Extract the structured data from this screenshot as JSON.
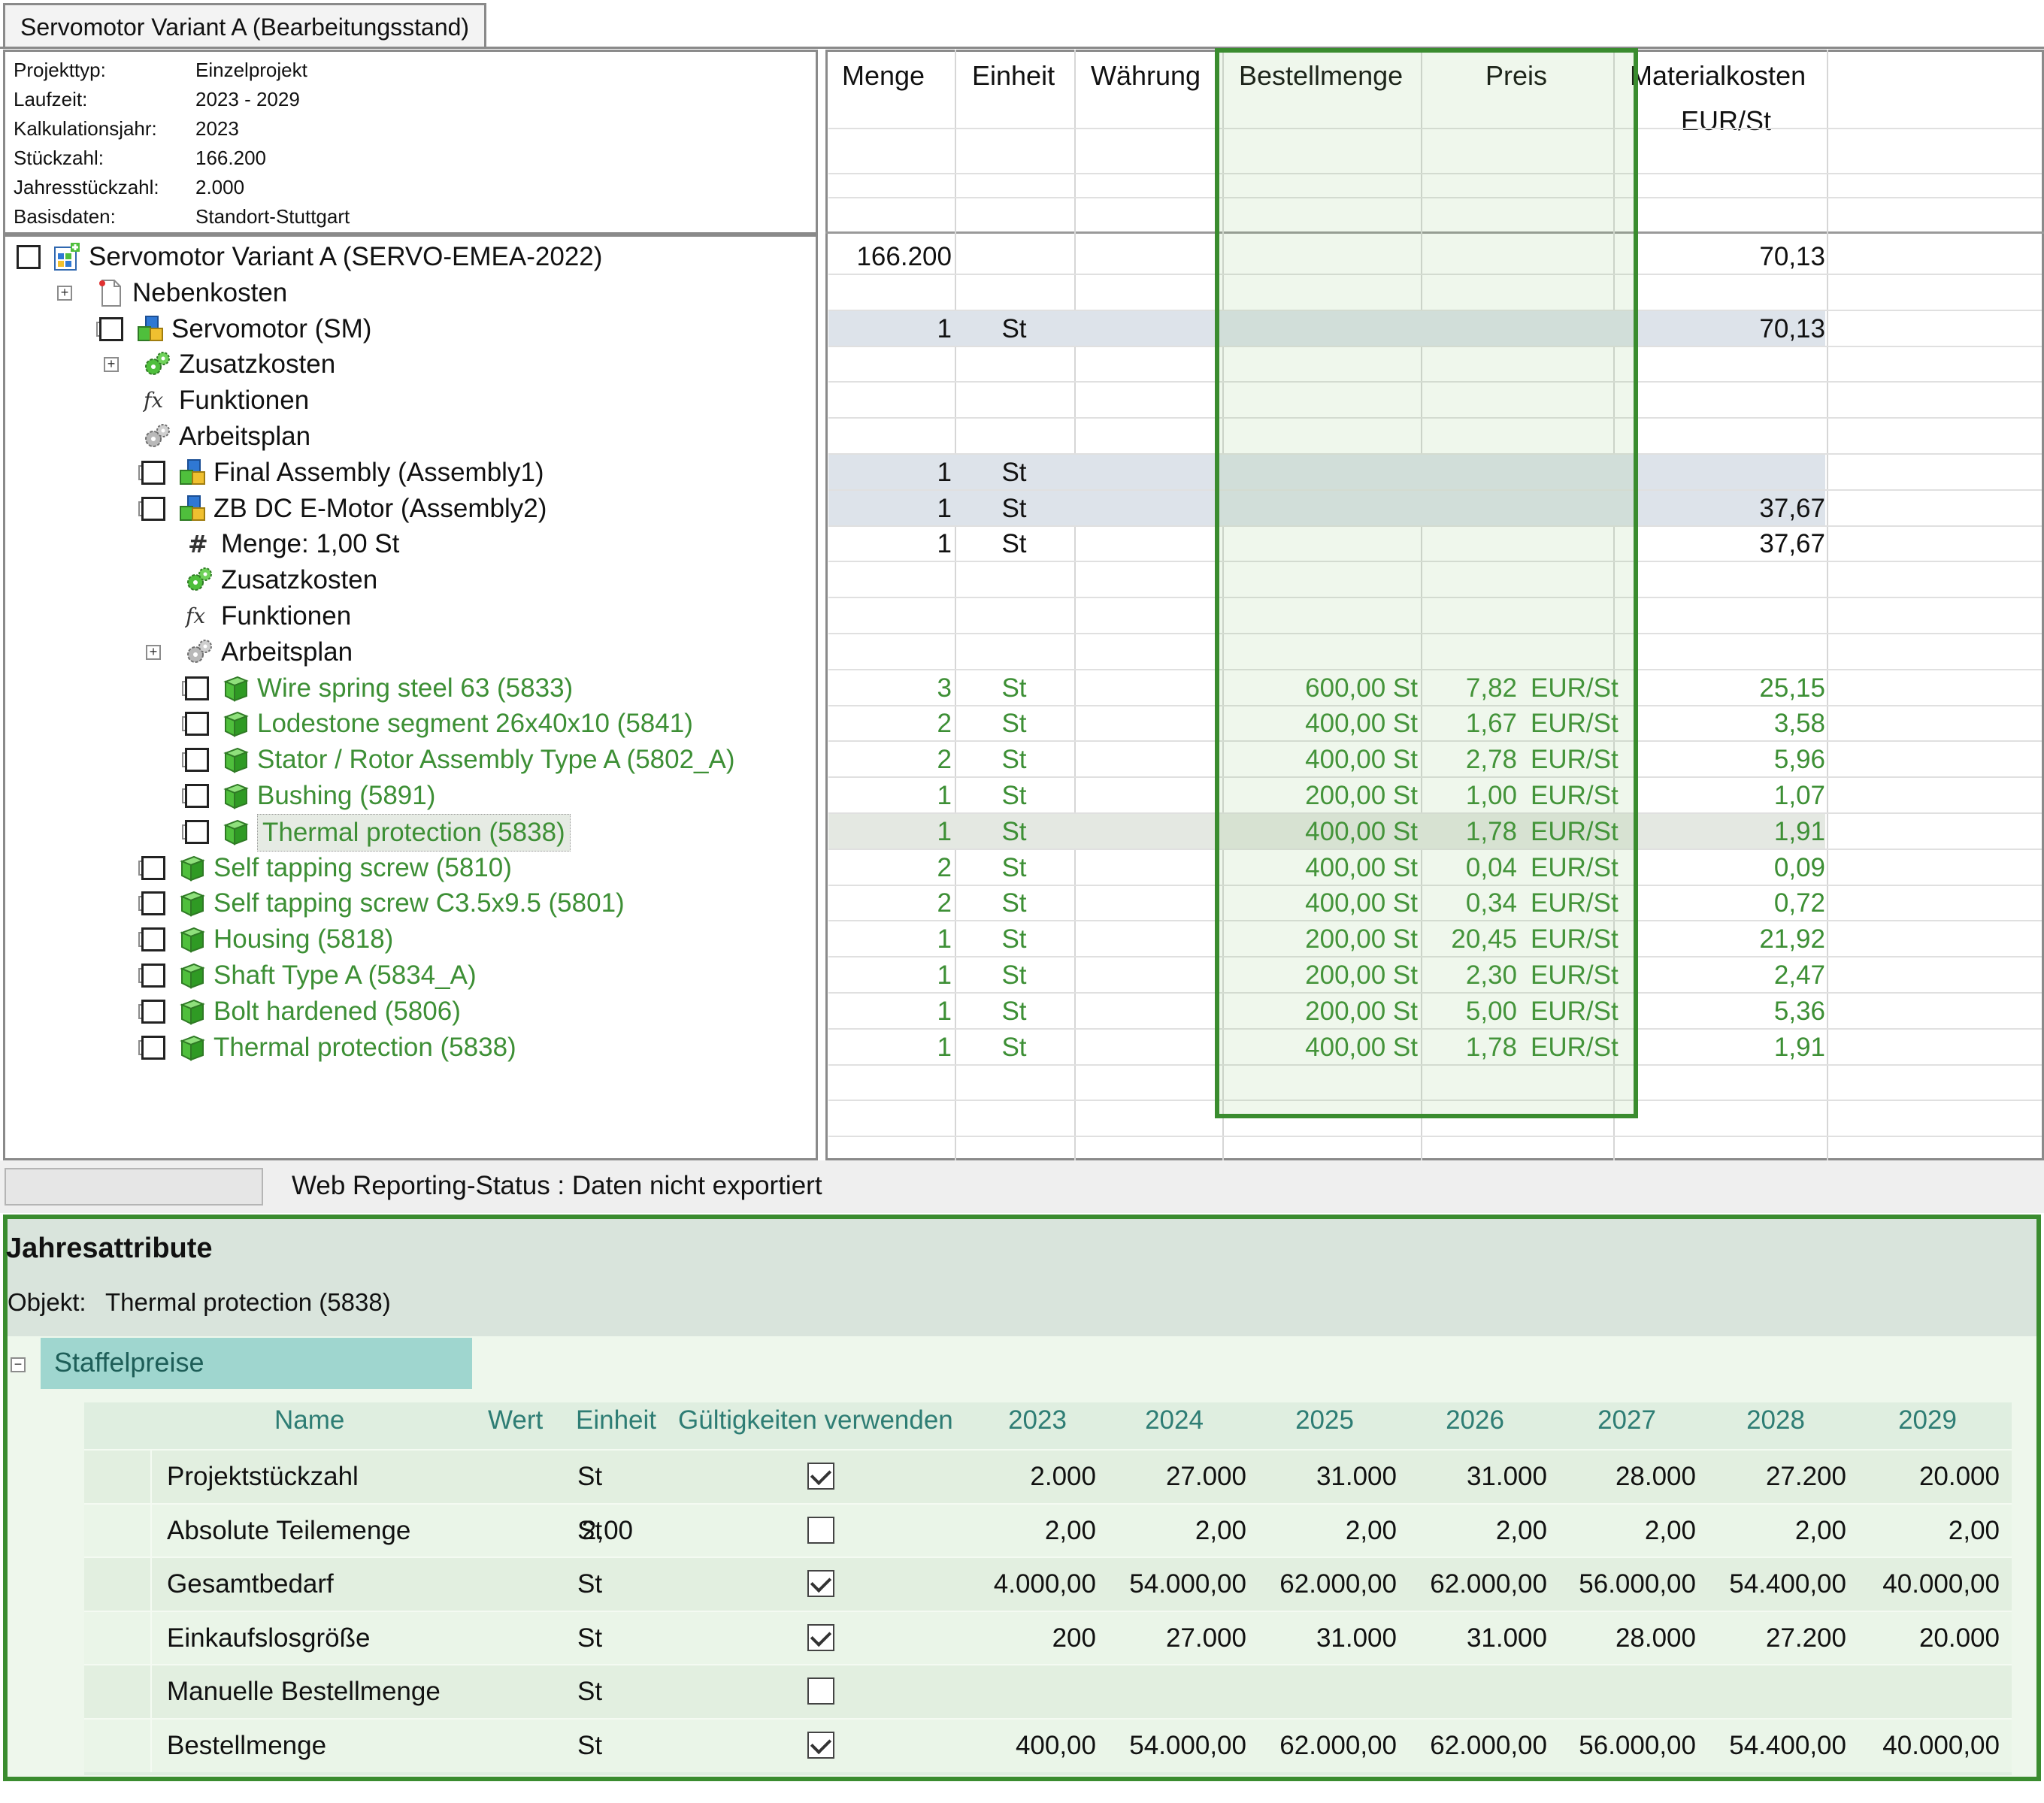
{
  "tab": {
    "title": "Servomotor Variant A (Bearbeitungsstand)"
  },
  "info": [
    {
      "label": "Projekttyp:",
      "value": "Einzelprojekt"
    },
    {
      "label": "Laufzeit:",
      "value": "2023 - 2029"
    },
    {
      "label": "Kalkulationsjahr:",
      "value": "2023"
    },
    {
      "label": "Stückzahl:",
      "value": "166.200"
    },
    {
      "label": "Jahresstückzahl:",
      "value": "2.000"
    },
    {
      "label": "Basisdaten:",
      "value": "Standort-Stuttgart"
    }
  ],
  "grid_headers": {
    "menge": "Menge",
    "einheit": "Einheit",
    "waehrung": "Währung",
    "bestellmenge": "Bestellmenge",
    "preis": "Preis",
    "materialkosten": "Materialkosten",
    "materialkosten_unit": "EUR/St"
  },
  "tree": [
    {
      "label": "Servomotor Variant A (SERVO-EMEA-2022)",
      "icon": "project-icon",
      "menge": "166.200",
      "einheit": "",
      "best": "",
      "preis": "",
      "pu": "",
      "mk": "70,13"
    },
    {
      "label": "Nebenkosten",
      "icon": "document-icon",
      "menge": "",
      "einheit": "",
      "best": "",
      "preis": "",
      "pu": "",
      "mk": ""
    },
    {
      "label": "Servomotor (SM)",
      "icon": "assembly-icon",
      "menge": "1",
      "einheit": "St",
      "best": "",
      "preis": "",
      "pu": "",
      "mk": "70,13"
    },
    {
      "label": "Zusatzkosten",
      "icon": "gears-green-icon",
      "menge": "",
      "einheit": "",
      "best": "",
      "preis": "",
      "pu": "",
      "mk": ""
    },
    {
      "label": "Funktionen",
      "icon": "function-icon",
      "menge": "",
      "einheit": "",
      "best": "",
      "preis": "",
      "pu": "",
      "mk": ""
    },
    {
      "label": "Arbeitsplan",
      "icon": "gears-gray-icon",
      "menge": "",
      "einheit": "",
      "best": "",
      "preis": "",
      "pu": "",
      "mk": ""
    },
    {
      "label": "Final Assembly (Assembly1)",
      "icon": "assembly-icon",
      "menge": "1",
      "einheit": "St",
      "best": "",
      "preis": "",
      "pu": "",
      "mk": ""
    },
    {
      "label": "ZB DC E-Motor (Assembly2)",
      "icon": "assembly-icon",
      "menge": "1",
      "einheit": "St",
      "best": "",
      "preis": "",
      "pu": "",
      "mk": "37,67"
    },
    {
      "label": "Menge: 1,00 St",
      "icon": "hash-icon",
      "menge": "1",
      "einheit": "St",
      "best": "",
      "preis": "",
      "pu": "",
      "mk": "37,67"
    },
    {
      "label": "Zusatzkosten",
      "icon": "gears-green-icon",
      "menge": "",
      "einheit": "",
      "best": "",
      "preis": "",
      "pu": "",
      "mk": ""
    },
    {
      "label": "Funktionen",
      "icon": "function-icon",
      "menge": "",
      "einheit": "",
      "best": "",
      "preis": "",
      "pu": "",
      "mk": ""
    },
    {
      "label": "Arbeitsplan",
      "icon": "gears-gray-icon",
      "menge": "",
      "einheit": "",
      "best": "",
      "preis": "",
      "pu": "",
      "mk": ""
    },
    {
      "label": "Wire spring steel 63 (5833)",
      "icon": "material-cube-icon",
      "menge": "3",
      "einheit": "St",
      "best": "600,00 St",
      "preis": "7,82",
      "pu": "EUR/St",
      "mk": "25,15"
    },
    {
      "label": "Lodestone segment 26x40x10 (5841)",
      "icon": "material-cube-icon",
      "menge": "2",
      "einheit": "St",
      "best": "400,00 St",
      "preis": "1,67",
      "pu": "EUR/St",
      "mk": "3,58"
    },
    {
      "label": "Stator / Rotor Assembly Type A (5802_A)",
      "icon": "material-cube-icon",
      "menge": "2",
      "einheit": "St",
      "best": "400,00 St",
      "preis": "2,78",
      "pu": "EUR/St",
      "mk": "5,96"
    },
    {
      "label": "Bushing (5891)",
      "icon": "material-cube-icon",
      "menge": "1",
      "einheit": "St",
      "best": "200,00 St",
      "preis": "1,00",
      "pu": "EUR/St",
      "mk": "1,07"
    },
    {
      "label": "Thermal protection (5838)",
      "icon": "material-cube-icon",
      "menge": "1",
      "einheit": "St",
      "best": "400,00 St",
      "preis": "1,78",
      "pu": "EUR/St",
      "mk": "1,91"
    },
    {
      "label": "Self tapping screw (5810)",
      "icon": "material-cube-icon",
      "menge": "2",
      "einheit": "St",
      "best": "400,00 St",
      "preis": "0,04",
      "pu": "EUR/St",
      "mk": "0,09"
    },
    {
      "label": "Self tapping screw C3.5x9.5 (5801)",
      "icon": "material-cube-icon",
      "menge": "2",
      "einheit": "St",
      "best": "400,00 St",
      "preis": "0,34",
      "pu": "EUR/St",
      "mk": "0,72"
    },
    {
      "label": "Housing (5818)",
      "icon": "material-cube-icon",
      "menge": "1",
      "einheit": "St",
      "best": "200,00 St",
      "preis": "20,45",
      "pu": "EUR/St",
      "mk": "21,92"
    },
    {
      "label": "Shaft Type A (5834_A)",
      "icon": "material-cube-icon",
      "menge": "1",
      "einheit": "St",
      "best": "200,00 St",
      "preis": "2,30",
      "pu": "EUR/St",
      "mk": "2,47"
    },
    {
      "label": "Bolt hardened (5806)",
      "icon": "material-cube-icon",
      "menge": "1",
      "einheit": "St",
      "best": "200,00 St",
      "preis": "5,00",
      "pu": "EUR/St",
      "mk": "5,36"
    },
    {
      "label": "Thermal protection (5838)",
      "icon": "material-cube-icon",
      "menge": "1",
      "einheit": "St",
      "best": "400,00 St",
      "preis": "1,78",
      "pu": "EUR/St",
      "mk": "1,91"
    }
  ],
  "status": {
    "text": "Web Reporting-Status : Daten nicht exportiert"
  },
  "attributes": {
    "title": "Jahresattribute",
    "object_label": "Objekt:",
    "object_value": "Thermal protection (5838)",
    "group": "Staffelpreise",
    "headers": {
      "name": "Name",
      "wert": "Wert",
      "einheit": "Einheit",
      "gueltig": "Gültigkeiten verwenden",
      "years": [
        "2023",
        "2024",
        "2025",
        "2026",
        "2027",
        "2028",
        "2029"
      ]
    },
    "rows": [
      {
        "name": "Projektstückzahl",
        "wert": "",
        "einheit": "St",
        "checked": true,
        "values": [
          "2.000",
          "27.000",
          "31.000",
          "31.000",
          "28.000",
          "27.200",
          "20.000"
        ]
      },
      {
        "name": "Absolute Teilemenge",
        "wert": "2,00",
        "einheit": "St",
        "checked": false,
        "values": [
          "2,00",
          "2,00",
          "2,00",
          "2,00",
          "2,00",
          "2,00",
          "2,00"
        ]
      },
      {
        "name": "Gesamtbedarf",
        "wert": "",
        "einheit": "St",
        "checked": true,
        "values": [
          "4.000,00",
          "54.000,00",
          "62.000,00",
          "62.000,00",
          "56.000,00",
          "54.400,00",
          "40.000,00"
        ]
      },
      {
        "name": "Einkaufslosgröße",
        "wert": "",
        "einheit": "St",
        "checked": true,
        "values": [
          "200",
          "27.000",
          "31.000",
          "31.000",
          "28.000",
          "27.200",
          "20.000"
        ]
      },
      {
        "name": "Manuelle Bestellmenge",
        "wert": "",
        "einheit": "St",
        "checked": false,
        "values": [
          "",
          "",
          "",
          "",
          "",
          "",
          ""
        ]
      },
      {
        "name": "Bestellmenge",
        "wert": "",
        "einheit": "St",
        "checked": true,
        "values": [
          "400,00",
          "54.000,00",
          "62.000,00",
          "62.000,00",
          "56.000,00",
          "54.400,00",
          "40.000,00"
        ]
      }
    ]
  },
  "colors": {
    "green_text": "#3d8f35",
    "highlight_green": "#3a8c2f",
    "group_header": "#9fd6cf",
    "attr_bg": "#eef7ec"
  }
}
